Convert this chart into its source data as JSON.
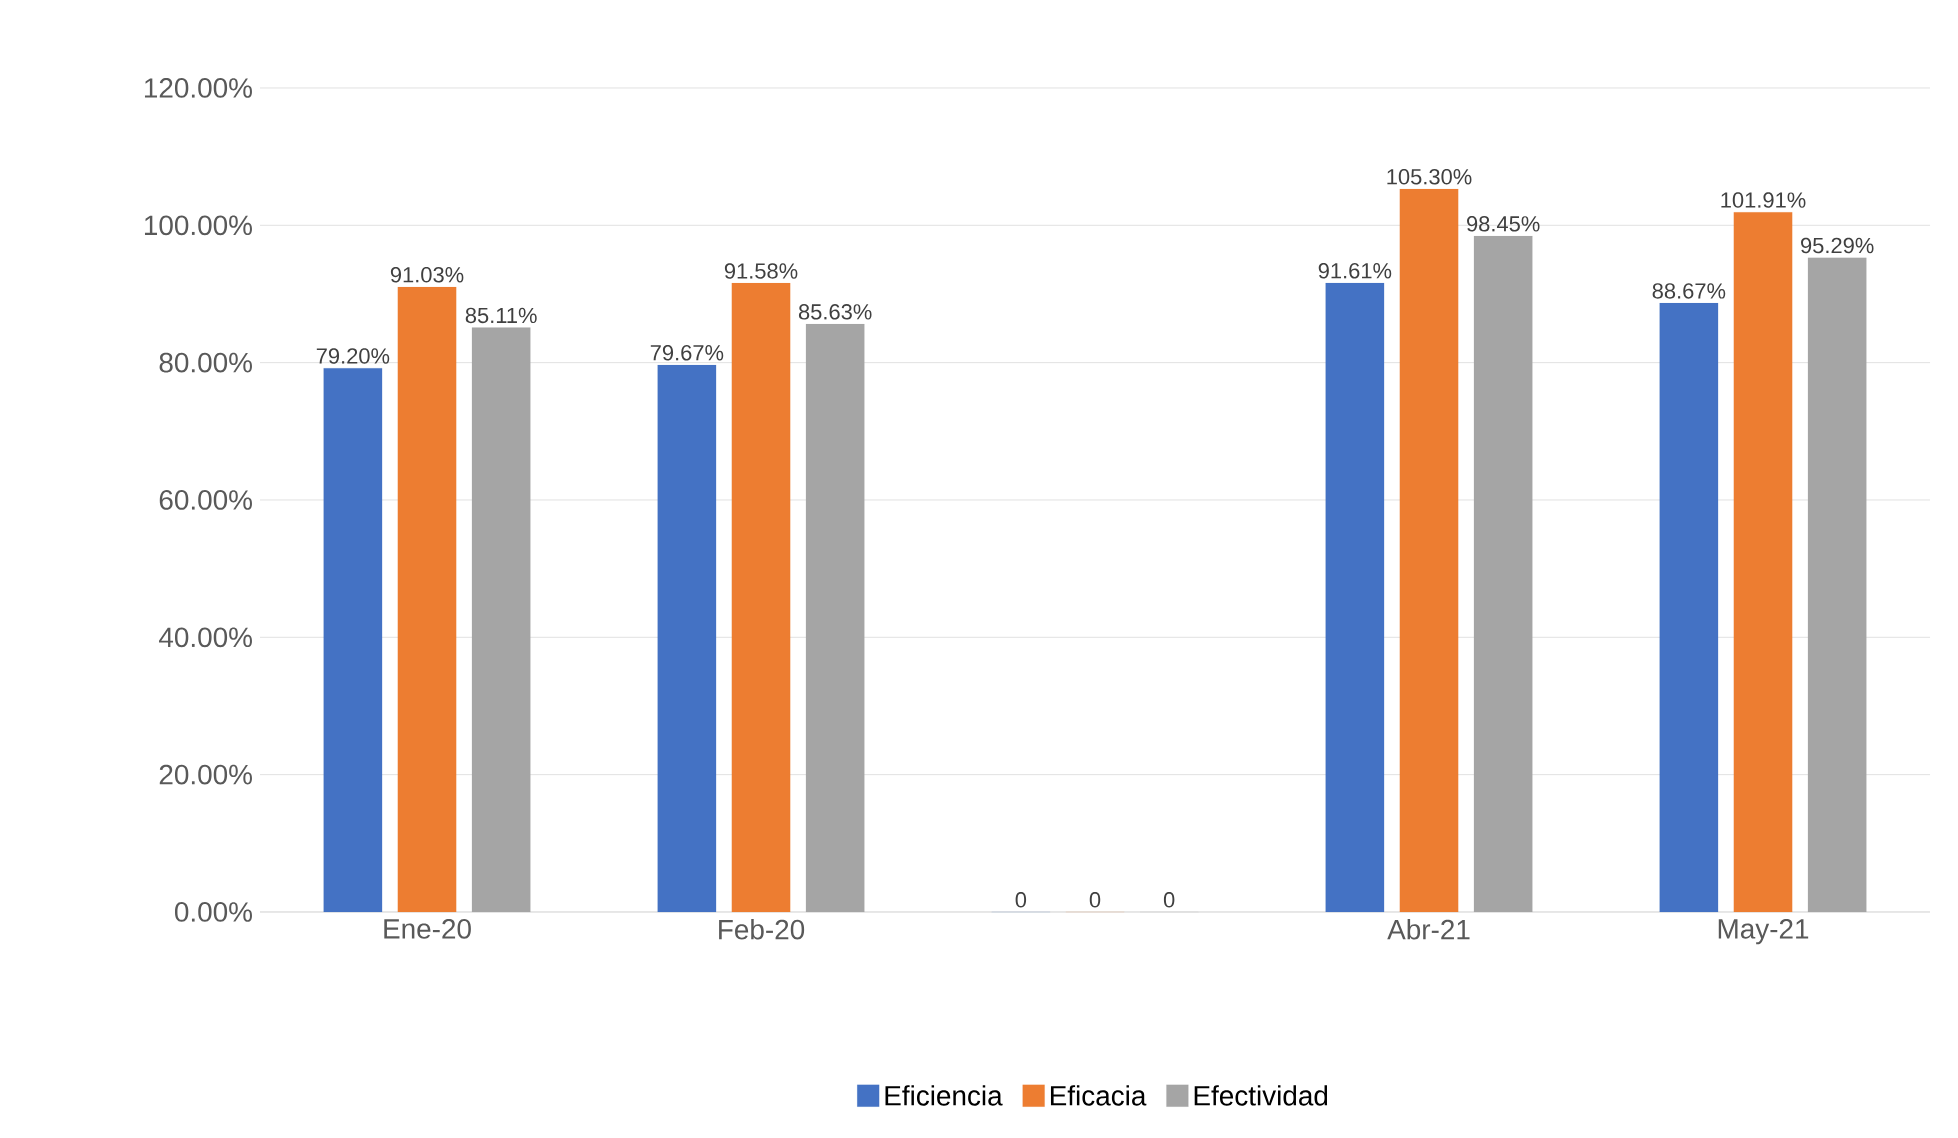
{
  "chart_data": {
    "type": "bar",
    "categories": [
      "Ene-20",
      "Feb-20",
      null,
      "Abr-21",
      "May-21"
    ],
    "series": [
      {
        "name": "Eficiencia",
        "color": "#4472c4",
        "values": [
          79.2,
          79.67,
          0,
          91.61,
          88.67
        ],
        "value_labels": [
          "79.20%",
          "79.67%",
          "0",
          "91.61%",
          "88.67%"
        ]
      },
      {
        "name": "Eficacia",
        "color": "#ed7d31",
        "values": [
          91.03,
          91.58,
          0,
          105.3,
          101.91
        ],
        "value_labels": [
          "91.03%",
          "91.58%",
          "0",
          "105.30%",
          "101.91%"
        ]
      },
      {
        "name": "Efectividad",
        "color": "#a5a5a5",
        "values": [
          85.11,
          85.63,
          0,
          98.45,
          95.29
        ],
        "value_labels": [
          "85.11%",
          "85.63%",
          "0",
          "98.45%",
          "95.29%"
        ]
      }
    ],
    "ylim": [
      0,
      120
    ],
    "yticks": [
      {
        "value": 0,
        "label": "0.00%"
      },
      {
        "value": 20,
        "label": "20.00%"
      },
      {
        "value": 40,
        "label": "40.00%"
      },
      {
        "value": 60,
        "label": "60.00%"
      },
      {
        "value": 80,
        "label": "80.00%"
      },
      {
        "value": 100,
        "label": "100.00%"
      },
      {
        "value": 120,
        "label": "120.00%"
      }
    ],
    "grid": "y",
    "legend": "bottom"
  }
}
